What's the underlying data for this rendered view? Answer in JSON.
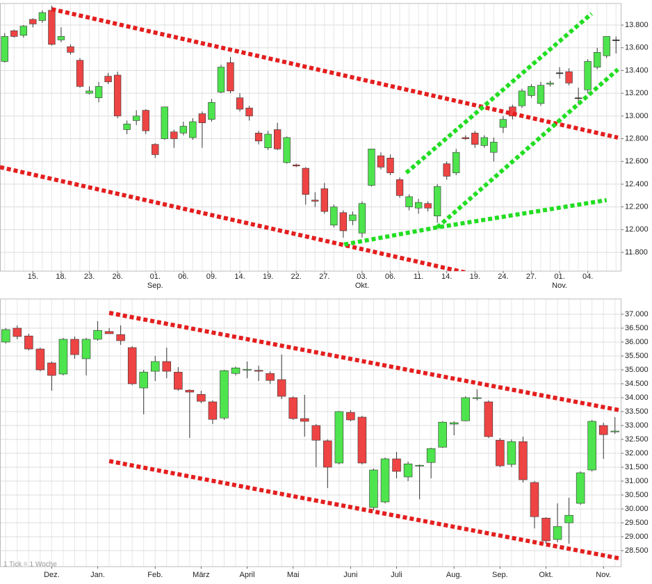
{
  "chart_data": [
    {
      "type": "candlestick",
      "categories": [
        null,
        null,
        null,
        "15.",
        null,
        null,
        "18.",
        null,
        null,
        "23.",
        null,
        null,
        "26.",
        null,
        null,
        null,
        "01.",
        null,
        null,
        "06.",
        null,
        null,
        "09.",
        null,
        null,
        "14.",
        null,
        null,
        "19.",
        null,
        null,
        "22.",
        null,
        null,
        "27.",
        null,
        null,
        null,
        "03.",
        null,
        null,
        "06.",
        null,
        null,
        "11.",
        null,
        null,
        "14.",
        null,
        null,
        "19.",
        null,
        null,
        "24.",
        null,
        null,
        "27.",
        null,
        null,
        "01.",
        null,
        null,
        "04.",
        null,
        null,
        null
      ],
      "category_months": [
        null,
        null,
        null,
        null,
        null,
        null,
        null,
        null,
        null,
        null,
        null,
        null,
        null,
        null,
        null,
        null,
        "Sep.",
        null,
        null,
        null,
        null,
        null,
        null,
        null,
        null,
        null,
        null,
        null,
        null,
        null,
        null,
        null,
        null,
        null,
        null,
        null,
        null,
        null,
        "Okt.",
        null,
        null,
        null,
        null,
        null,
        null,
        null,
        null,
        null,
        null,
        null,
        null,
        null,
        null,
        null,
        null,
        null,
        null,
        null,
        null,
        "Nov.",
        null,
        null,
        null,
        null,
        null,
        null
      ],
      "open": [
        13.48,
        13.75,
        13.71,
        13.85,
        13.84,
        13.93,
        13.67,
        13.61,
        13.49,
        13.2,
        13.16,
        13.35,
        13.36,
        12.88,
        12.96,
        13.05,
        12.75,
        12.8,
        12.86,
        12.85,
        12.81,
        13.02,
        12.97,
        13.21,
        13.47,
        13.16,
        13.07,
        12.85,
        12.72,
        12.88,
        12.59,
        12.57,
        12.54,
        12.26,
        12.36,
        12.04,
        12.15,
        12.08,
        11.97,
        12.39,
        12.65,
        12.63,
        12.44,
        12.2,
        12.19,
        12.23,
        12.12,
        12.58,
        12.5,
        12.81,
        12.85,
        12.74,
        12.68,
        12.9,
        13.08,
        13.09,
        13.18,
        13.11,
        13.28,
        13.38,
        13.39,
        13.16,
        13.23,
        13.43,
        13.53,
        13.67
      ],
      "high": [
        13.73,
        13.76,
        13.8,
        13.86,
        13.93,
        13.97,
        13.78,
        13.63,
        13.51,
        13.26,
        13.3,
        13.38,
        13.39,
        12.96,
        13.05,
        13.06,
        12.76,
        13.08,
        12.88,
        12.95,
        12.98,
        13.04,
        13.15,
        13.45,
        13.52,
        13.2,
        13.09,
        12.87,
        12.87,
        12.94,
        12.82,
        12.58,
        12.55,
        12.33,
        12.41,
        12.22,
        12.17,
        12.16,
        12.25,
        12.71,
        12.68,
        12.66,
        12.46,
        12.31,
        12.27,
        12.25,
        12.4,
        12.6,
        12.71,
        12.83,
        12.87,
        12.83,
        12.81,
        13.0,
        13.1,
        13.24,
        13.28,
        13.3,
        13.31,
        13.43,
        13.42,
        13.25,
        13.5,
        13.6,
        13.7,
        13.7
      ],
      "low": [
        13.47,
        13.69,
        13.69,
        13.78,
        13.82,
        13.62,
        13.65,
        13.54,
        13.25,
        13.19,
        13.12,
        13.28,
        12.98,
        12.84,
        12.92,
        12.84,
        12.63,
        12.79,
        12.72,
        12.83,
        12.79,
        12.72,
        12.95,
        13.2,
        13.2,
        13.04,
        12.96,
        12.75,
        12.7,
        12.7,
        12.58,
        12.55,
        12.22,
        12.2,
        12.14,
        12.02,
        11.93,
        12.04,
        11.93,
        12.38,
        12.53,
        12.48,
        12.28,
        12.17,
        12.14,
        12.16,
        12.06,
        12.44,
        12.48,
        12.79,
        12.72,
        12.72,
        12.6,
        12.85,
        12.97,
        13.07,
        13.16,
        13.09,
        13.26,
        13.33,
        13.27,
        13.1,
        13.2,
        13.41,
        13.51,
        13.55
      ],
      "close": [
        13.7,
        13.7,
        13.79,
        13.81,
        13.91,
        13.63,
        13.7,
        13.56,
        13.26,
        13.22,
        13.26,
        13.3,
        13.0,
        12.93,
        13.0,
        12.87,
        12.66,
        13.08,
        12.8,
        12.91,
        12.95,
        12.94,
        13.12,
        13.43,
        13.22,
        13.06,
        13.0,
        12.78,
        12.84,
        12.71,
        12.81,
        12.56,
        12.31,
        12.25,
        12.16,
        12.2,
        11.99,
        12.13,
        12.23,
        12.71,
        12.55,
        12.5,
        12.3,
        12.29,
        12.24,
        12.19,
        12.38,
        12.47,
        12.68,
        12.8,
        12.75,
        12.81,
        12.77,
        12.97,
        13.0,
        13.22,
        13.26,
        13.27,
        13.29,
        13.38,
        13.29,
        13.16,
        13.48,
        13.56,
        13.7,
        13.67
      ],
      "up_color": "#4ee44e",
      "down_color": "#ee4444",
      "flat_color": "#222222",
      "ylim": [
        11.635,
        13.99
      ],
      "yticks": [
        {
          "value": 11.8,
          "label": "11.800"
        },
        {
          "value": 12.0,
          "label": "12.000"
        },
        {
          "value": 12.2,
          "label": "12.200"
        },
        {
          "value": 12.4,
          "label": "12.400"
        },
        {
          "value": 12.6,
          "label": "12.600"
        },
        {
          "value": 12.8,
          "label": "12.800"
        },
        {
          "value": 13.0,
          "label": "13.000"
        },
        {
          "value": 13.2,
          "label": "13.200"
        },
        {
          "value": 13.4,
          "label": "13.400"
        },
        {
          "value": 13.6,
          "label": "13.600"
        },
        {
          "value": 13.8,
          "label": "13.800"
        }
      ],
      "grid": true,
      "trendlines": [
        {
          "color": "#e41e1e",
          "x": [
            5,
            65.2
          ],
          "y": [
            13.94,
            12.81
          ]
        },
        {
          "color": "#e41e1e",
          "x": [
            -0.5,
            50.2
          ],
          "y": [
            12.55,
            11.6
          ]
        },
        {
          "color": "#22dd22",
          "x": [
            36.1,
            46,
            64
          ],
          "y": [
            11.87,
            12.02,
            12.26
          ]
        },
        {
          "color": "#22dd22",
          "x": [
            42.7,
            62.4
          ],
          "y": [
            12.5,
            13.9
          ]
        },
        {
          "color": "#22dd22",
          "x": [
            46,
            65.2
          ],
          "y": [
            12.02,
            13.41
          ]
        }
      ]
    },
    {
      "type": "candlestick",
      "categories": [
        null,
        null,
        null,
        null,
        "Dez.",
        null,
        null,
        null,
        "Jan.",
        null,
        null,
        null,
        null,
        "Feb.",
        null,
        null,
        null,
        "März",
        null,
        null,
        null,
        "April",
        null,
        null,
        null,
        "Mai",
        null,
        null,
        null,
        null,
        "Juni",
        null,
        null,
        null,
        "Juli",
        null,
        null,
        null,
        null,
        "Aug.",
        null,
        null,
        null,
        "Sep.",
        null,
        null,
        null,
        "Okt.",
        null,
        null,
        null,
        null,
        "Nov.",
        null
      ],
      "open": [
        36.0,
        36.5,
        36.22,
        35.75,
        35.25,
        34.85,
        36.1,
        35.4,
        36.1,
        36.38,
        36.27,
        35.8,
        34.35,
        34.95,
        35.3,
        34.92,
        34.27,
        34.12,
        33.85,
        33.27,
        34.87,
        35.0,
        34.98,
        34.87,
        34.65,
        34.0,
        33.25,
        33.0,
        32.45,
        31.65,
        33.47,
        33.3,
        30.05,
        30.25,
        31.8,
        31.15,
        31.55,
        31.67,
        32.22,
        33.05,
        33.17,
        33.98,
        33.85,
        32.47,
        31.6,
        32.42,
        30.95,
        29.67,
        28.9,
        29.5,
        30.2,
        31.4,
        33.0,
        32.77
      ],
      "high": [
        36.5,
        36.6,
        36.3,
        35.8,
        35.3,
        36.15,
        36.2,
        36.15,
        36.75,
        36.5,
        36.6,
        35.85,
        35.0,
        35.5,
        35.8,
        35.1,
        34.3,
        34.25,
        33.9,
        35.0,
        35.12,
        35.3,
        35.15,
        34.95,
        35.55,
        34.05,
        34.1,
        33.05,
        32.5,
        33.52,
        33.55,
        33.35,
        31.45,
        31.85,
        32.05,
        31.7,
        31.6,
        32.2,
        33.15,
        33.15,
        34.05,
        34.3,
        33.9,
        32.55,
        32.5,
        32.6,
        31.0,
        29.7,
        30.2,
        30.4,
        31.35,
        33.2,
        33.1,
        33.3
      ],
      "low": [
        35.95,
        36.1,
        35.7,
        34.95,
        34.25,
        34.8,
        35.4,
        34.8,
        36.05,
        36.3,
        35.9,
        34.45,
        33.4,
        34.6,
        34.7,
        34.25,
        32.55,
        33.8,
        33.05,
        33.2,
        34.8,
        34.7,
        34.6,
        34.5,
        33.95,
        33.2,
        32.6,
        31.5,
        30.75,
        31.6,
        33.15,
        31.6,
        29.95,
        30.2,
        31.1,
        31.0,
        30.35,
        31.1,
        32.2,
        32.65,
        33.15,
        33.9,
        32.55,
        31.5,
        31.5,
        30.95,
        29.3,
        28.75,
        28.8,
        28.75,
        30.15,
        31.35,
        31.8,
        32.7
      ],
      "close": [
        36.45,
        36.2,
        35.75,
        35.0,
        34.8,
        36.1,
        35.55,
        36.1,
        36.42,
        36.3,
        36.05,
        34.5,
        34.92,
        35.3,
        34.95,
        34.3,
        34.2,
        33.87,
        33.22,
        34.97,
        35.07,
        35.02,
        34.95,
        34.62,
        34.05,
        33.25,
        33.15,
        32.47,
        31.5,
        33.5,
        33.2,
        31.65,
        31.4,
        31.8,
        31.35,
        31.62,
        31.57,
        32.17,
        33.12,
        33.1,
        34.0,
        34.0,
        32.6,
        31.55,
        32.42,
        31.05,
        29.72,
        28.85,
        29.37,
        29.77,
        31.3,
        33.15,
        32.67,
        32.8
      ],
      "up_color": "#4ee44e",
      "down_color": "#ee4444",
      "flat_color": "#222222",
      "ylim": [
        27.925,
        37.55
      ],
      "yticks": [
        {
          "value": 28.5,
          "label": "28.500"
        },
        {
          "value": 29.0,
          "label": "29.000"
        },
        {
          "value": 29.5,
          "label": "29.500"
        },
        {
          "value": 30.0,
          "label": "30.000"
        },
        {
          "value": 30.5,
          "label": "30.500"
        },
        {
          "value": 31.0,
          "label": "31.000"
        },
        {
          "value": 31.5,
          "label": "31.500"
        },
        {
          "value": 32.0,
          "label": "32.000"
        },
        {
          "value": 32.5,
          "label": "32.500"
        },
        {
          "value": 33.0,
          "label": "33.000"
        },
        {
          "value": 33.5,
          "label": "33.500"
        },
        {
          "value": 34.0,
          "label": "34.000"
        },
        {
          "value": 34.5,
          "label": "34.500"
        },
        {
          "value": 35.0,
          "label": "35.000"
        },
        {
          "value": 35.5,
          "label": "35.500"
        },
        {
          "value": 36.0,
          "label": "36.000"
        },
        {
          "value": 36.5,
          "label": "36.500"
        },
        {
          "value": 37.0,
          "label": "37.000"
        }
      ],
      "grid": true,
      "annotation": "1 Tick = 1 Woche",
      "trendlines": [
        {
          "color": "#e41e1e",
          "x": [
            9,
            53.4
          ],
          "y": [
            37.05,
            33.55
          ]
        },
        {
          "color": "#e41e1e",
          "x": [
            9,
            53.4
          ],
          "y": [
            31.72,
            28.22
          ]
        }
      ]
    }
  ]
}
